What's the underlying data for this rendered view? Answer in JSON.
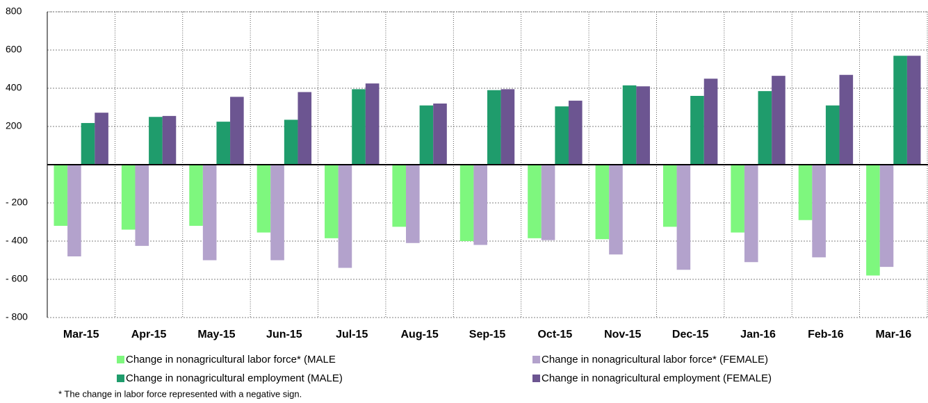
{
  "chart_data": {
    "type": "bar",
    "categories": [
      "Mar-15",
      "Apr-15",
      "May-15",
      "Jun-15",
      "Jul-15",
      "Aug-15",
      "Sep-15",
      "Oct-15",
      "Nov-15",
      "Dec-15",
      "Jan-16",
      "Feb-16",
      "Mar-16"
    ],
    "series": [
      {
        "name": "Change in nonagricultural labor force* (MALE",
        "color": "#7ef77e",
        "values": [
          -320,
          -340,
          -320,
          -355,
          -385,
          -325,
          -400,
          -385,
          -390,
          -325,
          -355,
          -290,
          -580
        ]
      },
      {
        "name": "Change in nonagricultural labor force* (FEMALE)",
        "color": "#b3a2cc",
        "values": [
          -480,
          -425,
          -500,
          -500,
          -540,
          -410,
          -420,
          -395,
          -470,
          -550,
          -510,
          -485,
          -535
        ]
      },
      {
        "name": "Change in nonagricultural employment (MALE)",
        "color": "#1f9c6c",
        "values": [
          218,
          250,
          225,
          235,
          395,
          310,
          390,
          305,
          415,
          360,
          385,
          310,
          570
        ]
      },
      {
        "name": "Change in nonagricultural employment (FEMALE)",
        "color": "#6c5591",
        "values": [
          272,
          255,
          355,
          380,
          425,
          320,
          395,
          335,
          410,
          450,
          465,
          470,
          570
        ]
      }
    ],
    "ylim": [
      -800,
      800
    ],
    "yticks": [
      800,
      600,
      400,
      200,
      {
        "value": -200,
        "label": "- 200"
      },
      {
        "value": -400,
        "label": "- 400"
      },
      {
        "value": -600,
        "label": "- 600"
      },
      {
        "value": -800,
        "label": "- 800"
      }
    ],
    "grid": true,
    "footnote": "* The change in labor force represented with a negative sign."
  }
}
